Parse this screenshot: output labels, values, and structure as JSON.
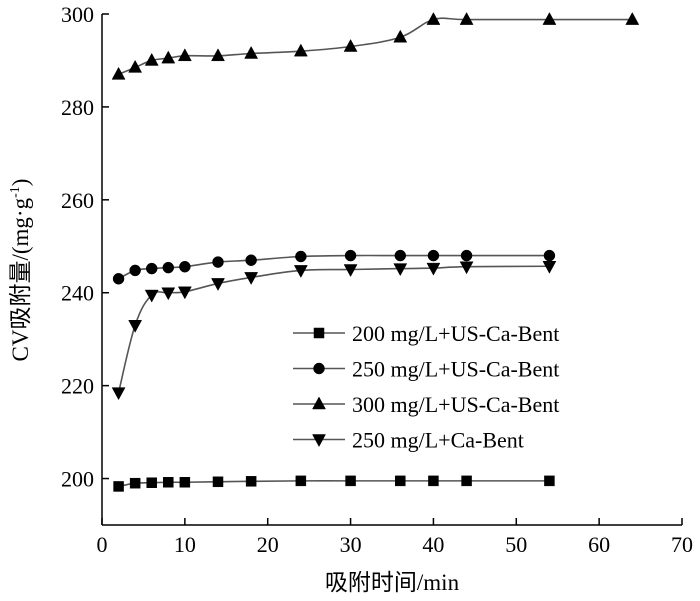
{
  "chart_data": {
    "type": "line",
    "title": "",
    "xlabel": "吸附时间/min",
    "ylabel": "CV吸附量/(mg·g",
    "ylabel_sup": "-1",
    "ylabel_end": ")",
    "xlim": [
      0,
      70
    ],
    "ylim": [
      190,
      300
    ],
    "xticks": [
      0,
      10,
      20,
      30,
      40,
      50,
      60,
      70
    ],
    "yticks": [
      200,
      220,
      240,
      260,
      280,
      300
    ],
    "grid": false,
    "legend_position": "center-right",
    "series": [
      {
        "name": "200 mg/L+US-Ca-Bent",
        "marker": "square",
        "x": [
          2,
          4,
          6,
          8,
          10,
          14,
          18,
          24,
          30,
          36,
          40,
          44,
          54
        ],
        "y": [
          198.3,
          199.0,
          199.1,
          199.2,
          199.2,
          199.3,
          199.4,
          199.5,
          199.5,
          199.5,
          199.5,
          199.5,
          199.5
        ]
      },
      {
        "name": "250 mg/L+US-Ca-Bent",
        "marker": "circle",
        "x": [
          2,
          4,
          6,
          8,
          10,
          14,
          18,
          24,
          30,
          36,
          40,
          44,
          54
        ],
        "y": [
          243.0,
          244.8,
          245.2,
          245.4,
          245.6,
          246.6,
          247.0,
          247.8,
          248.0,
          248.0,
          248.0,
          248.0,
          248.0
        ]
      },
      {
        "name": "300 mg/L+US-Ca-Bent",
        "marker": "triangle-up",
        "x": [
          2,
          4,
          6,
          8,
          10,
          14,
          18,
          24,
          30,
          36,
          40,
          44,
          54,
          64
        ],
        "y": [
          287.0,
          288.5,
          290.0,
          290.5,
          291.0,
          291.0,
          291.5,
          292.0,
          293.0,
          295.0,
          298.8,
          298.8,
          298.8,
          298.8
        ]
      },
      {
        "name": "250 mg/L+Ca-Bent",
        "marker": "triangle-down",
        "x": [
          2,
          4,
          6,
          8,
          10,
          14,
          18,
          24,
          30,
          36,
          40,
          44,
          54
        ],
        "y": [
          218.5,
          233.0,
          239.5,
          240.0,
          240.2,
          242.0,
          243.3,
          244.8,
          245.0,
          245.2,
          245.3,
          245.6,
          245.7
        ]
      }
    ]
  }
}
